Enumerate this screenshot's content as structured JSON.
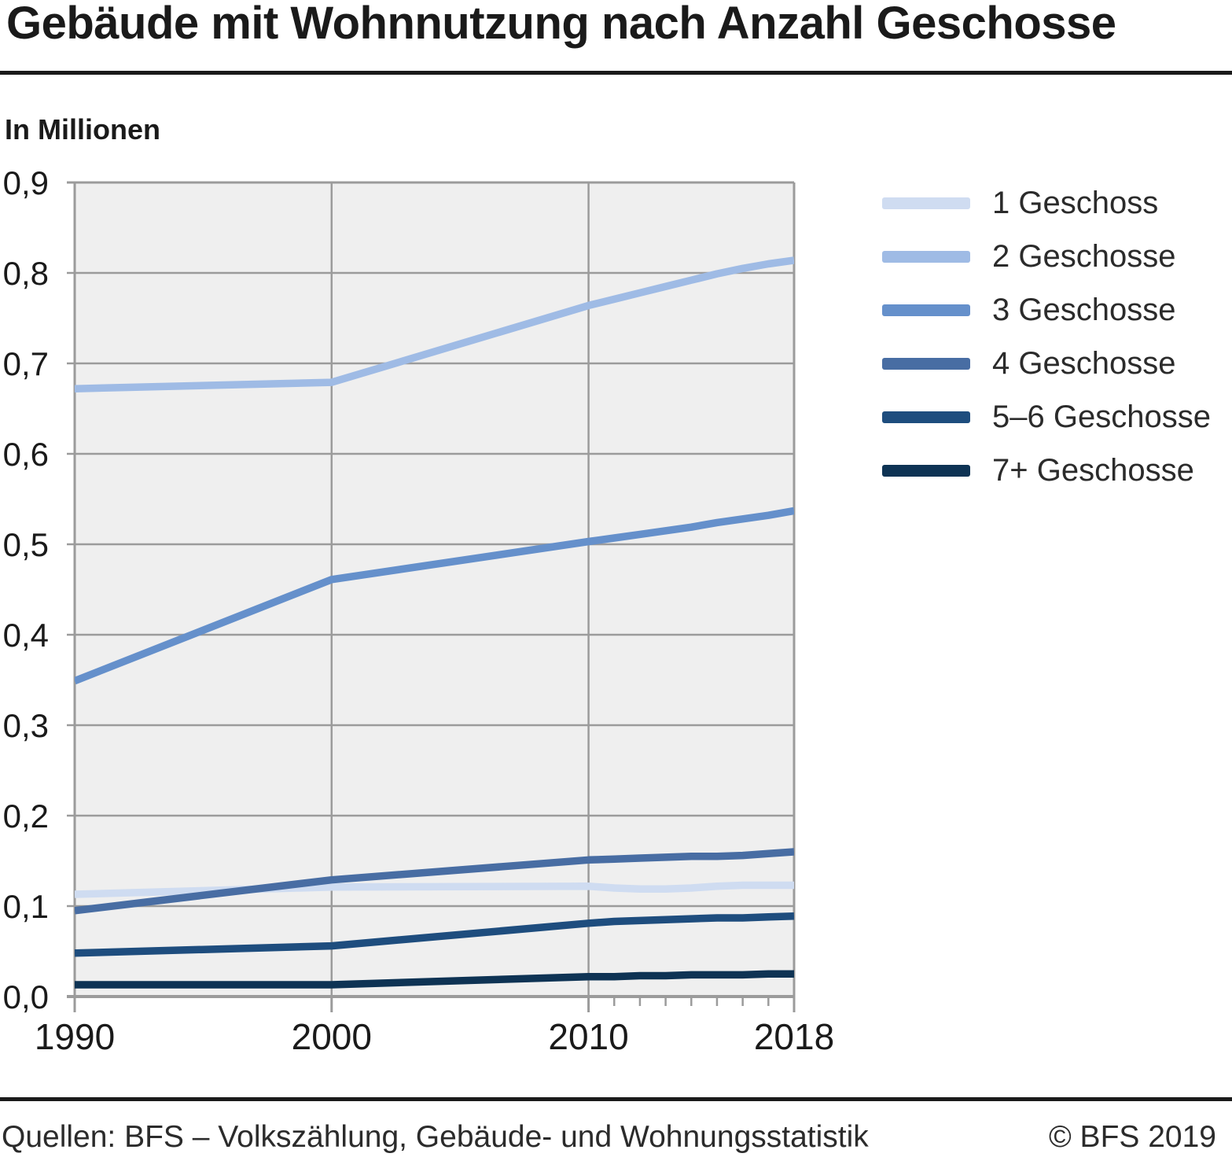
{
  "title": "Gebäude mit Wohnnutzung nach Anzahl Geschosse",
  "subtitle": "In Millionen",
  "footer": {
    "source": "Quellen: BFS – Volkszählung, Gebäude- und Wohnungsstatistik",
    "copyright": "© BFS 2019"
  },
  "colors": {
    "plot_background": "#efefef",
    "grid": "#9b9b9b",
    "text": "#1a1a1a",
    "divider": "#1a1a1a"
  },
  "chart_data": {
    "type": "line",
    "title": "Gebäude mit Wohnnutzung nach Anzahl Geschosse",
    "ylabel": "In Millionen",
    "x": [
      1990,
      2000,
      2010,
      2011,
      2012,
      2013,
      2014,
      2015,
      2016,
      2017,
      2018
    ],
    "xlim": [
      1990,
      2018
    ],
    "ylim": [
      0.0,
      0.9
    ],
    "xticks_major": [
      1990,
      2000,
      2010,
      2018
    ],
    "xtick_labels": [
      "1990",
      "2000",
      "2010",
      "2018"
    ],
    "xticks_minor": [
      2011,
      2012,
      2013,
      2014,
      2015,
      2016,
      2017
    ],
    "yticks": [
      0.0,
      0.1,
      0.2,
      0.3,
      0.4,
      0.5,
      0.6,
      0.7,
      0.8,
      0.9
    ],
    "ytick_labels": [
      "0,0",
      "0,1",
      "0,2",
      "0,3",
      "0,4",
      "0,5",
      "0,6",
      "0,7",
      "0,8",
      "0,9"
    ],
    "grid": true,
    "legend_position": "right",
    "series": [
      {
        "name": "1 Geschoss",
        "color": "#cfdcf1",
        "values": [
          0.113,
          0.121,
          0.122,
          0.12,
          0.119,
          0.119,
          0.12,
          0.122,
          0.123,
          0.123,
          0.123
        ]
      },
      {
        "name": "2 Geschosse",
        "color": "#9fbbe5",
        "values": [
          0.672,
          0.679,
          0.764,
          0.771,
          0.778,
          0.785,
          0.792,
          0.799,
          0.805,
          0.81,
          0.814
        ]
      },
      {
        "name": "3 Geschosse",
        "color": "#6590cb",
        "values": [
          0.349,
          0.461,
          0.503,
          0.507,
          0.511,
          0.515,
          0.519,
          0.524,
          0.528,
          0.532,
          0.537
        ]
      },
      {
        "name": "4 Geschosse",
        "color": "#486da3",
        "values": [
          0.095,
          0.129,
          0.151,
          0.152,
          0.153,
          0.154,
          0.155,
          0.155,
          0.156,
          0.158,
          0.16
        ]
      },
      {
        "name": "5–6 Geschosse",
        "color": "#1e4d7e",
        "values": [
          0.048,
          0.056,
          0.081,
          0.083,
          0.084,
          0.085,
          0.086,
          0.087,
          0.087,
          0.088,
          0.089
        ]
      },
      {
        "name": "7+ Geschosse",
        "color": "#0e3354",
        "values": [
          0.013,
          0.013,
          0.022,
          0.022,
          0.023,
          0.023,
          0.024,
          0.024,
          0.024,
          0.025,
          0.025
        ]
      }
    ]
  }
}
